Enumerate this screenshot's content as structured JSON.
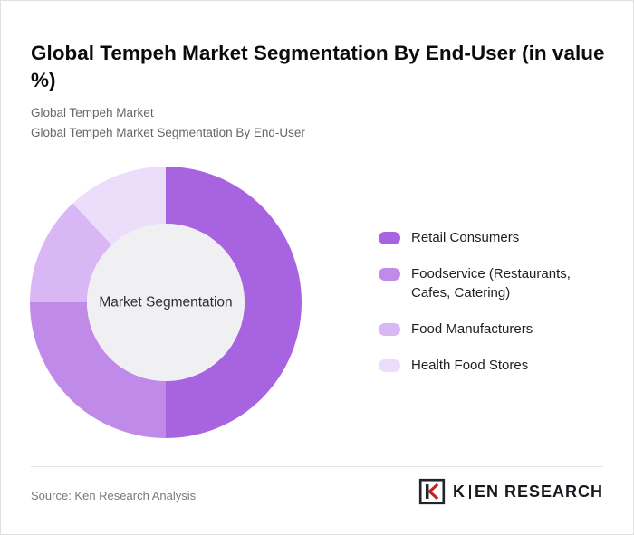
{
  "header": {
    "title": "Global Tempeh Market Segmentation By End-User (in value %)",
    "subtitle_line1": "Global Tempeh Market",
    "subtitle_line2": "Global Tempeh Market Segmentation By End-User"
  },
  "chart_data": {
    "type": "pie",
    "donut": true,
    "title": "Global Tempeh Market Segmentation By End-User (in value %)",
    "center_label": "Market Segmentation",
    "legend_position": "right",
    "direction": "clockwise",
    "start_angle_deg": 0,
    "center_fill": "#f0eff1",
    "segments": [
      {
        "label": "Retail Consumers",
        "value": 50,
        "color": "#a763e0"
      },
      {
        "label": "Foodservice (Restaurants, Cafes, Catering)",
        "value": 25,
        "color": "#c08ae9"
      },
      {
        "label": "Food Manufacturers",
        "value": 13,
        "color": "#d9b6f4"
      },
      {
        "label": "Health Food Stores",
        "value": 12,
        "color": "#ecddfb"
      }
    ]
  },
  "footer": {
    "source": "Source: Ken Research Analysis",
    "logo": {
      "k": "K",
      "rest": "EN RESEARCH"
    }
  }
}
